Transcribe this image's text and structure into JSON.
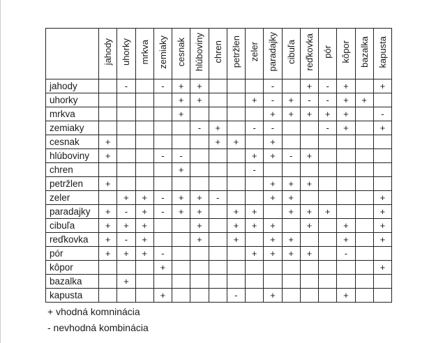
{
  "table": {
    "columns": [
      "jahody",
      "uhorky",
      "mrkva",
      "zemiaky",
      "cesnak",
      "hlúboviny",
      "chren",
      "petržlen",
      "zeler",
      "paradajky",
      "cibuľa",
      "reďkovka",
      "pór",
      "kôpor",
      "bazalka",
      "kapusta"
    ],
    "rows": [
      {
        "label": "jahody",
        "cells": [
          "",
          "-",
          "",
          "-",
          "+",
          "+",
          "",
          "",
          "",
          "-",
          "",
          "+",
          "-",
          "+",
          "",
          "+"
        ]
      },
      {
        "label": "uhorky",
        "cells": [
          "",
          "",
          "",
          "",
          "+",
          "+",
          "",
          "",
          "+",
          "-",
          "+",
          "-",
          "-",
          "+",
          "+",
          ""
        ]
      },
      {
        "label": "mrkva",
        "cells": [
          "",
          "",
          "",
          "",
          "+",
          "",
          "",
          "",
          "",
          "+",
          "+",
          "+",
          "+",
          "+",
          "",
          "-"
        ]
      },
      {
        "label": "zemiaky",
        "cells": [
          "",
          "",
          "",
          "",
          "",
          "-",
          "+",
          "",
          "-",
          "-",
          "",
          "",
          "-",
          "+",
          "",
          "+"
        ]
      },
      {
        "label": "cesnak",
        "cells": [
          "+",
          "",
          "",
          "",
          "",
          "",
          "+",
          "+",
          "",
          "+",
          "",
          "",
          "",
          "",
          "",
          ""
        ]
      },
      {
        "label": "hlúboviny",
        "cells": [
          "+",
          "",
          "",
          "-",
          "-",
          "",
          "",
          "",
          "+",
          "+",
          "-",
          "+",
          "",
          "",
          "",
          ""
        ]
      },
      {
        "label": "chren",
        "cells": [
          "",
          "",
          "",
          "",
          "+",
          "",
          "",
          "",
          "-",
          "",
          "",
          "",
          "",
          "",
          "",
          ""
        ]
      },
      {
        "label": "petržlen",
        "cells": [
          "+",
          "",
          "",
          "",
          "",
          "",
          "",
          "",
          "",
          "+",
          "+",
          "+",
          "",
          "",
          "",
          ""
        ]
      },
      {
        "label": "zeler",
        "cells": [
          "",
          "+",
          "+",
          "-",
          "+",
          "+",
          "-",
          "",
          "",
          "+",
          "+",
          "",
          "",
          "",
          "",
          "+"
        ]
      },
      {
        "label": "paradajky",
        "cells": [
          "+",
          "-",
          "+",
          "-",
          "+",
          "+",
          "",
          "+",
          "+",
          "",
          "+",
          "+",
          "+",
          "",
          "",
          "+"
        ]
      },
      {
        "label": "cibuľa",
        "cells": [
          "+",
          "+",
          "+",
          "",
          "",
          "+",
          "",
          "+",
          "+",
          "+",
          "",
          "+",
          "",
          "+",
          "",
          "+"
        ]
      },
      {
        "label": "reďkovka",
        "cells": [
          "+",
          "-",
          "+",
          "",
          "",
          "+",
          "",
          "+",
          "",
          "+",
          "+",
          "",
          "",
          "+",
          "",
          "+"
        ]
      },
      {
        "label": "pór",
        "cells": [
          "+",
          "+",
          "+",
          "-",
          "",
          "",
          "",
          "",
          "+",
          "+",
          "+",
          "+",
          "",
          "-",
          "",
          ""
        ]
      },
      {
        "label": "kôpor",
        "cells": [
          "",
          "",
          "",
          "+",
          "",
          "",
          "",
          "",
          "",
          "",
          "",
          "",
          "",
          "",
          "",
          "+"
        ]
      },
      {
        "label": "bazalka",
        "cells": [
          "",
          "+",
          "",
          "",
          "",
          "",
          "",
          "",
          "",
          "",
          "",
          "",
          "",
          "",
          "",
          ""
        ]
      },
      {
        "label": "kapusta",
        "cells": [
          "",
          "",
          "",
          "+",
          "",
          "",
          "",
          "-",
          "",
          "+",
          "",
          "",
          "",
          "+",
          "",
          ""
        ]
      }
    ],
    "symbols": {
      "suitable": "+",
      "unsuitable": "-"
    }
  },
  "legend": {
    "positive": "+ vhodná komninácia",
    "negative": "- nevhodná kombinácia"
  }
}
